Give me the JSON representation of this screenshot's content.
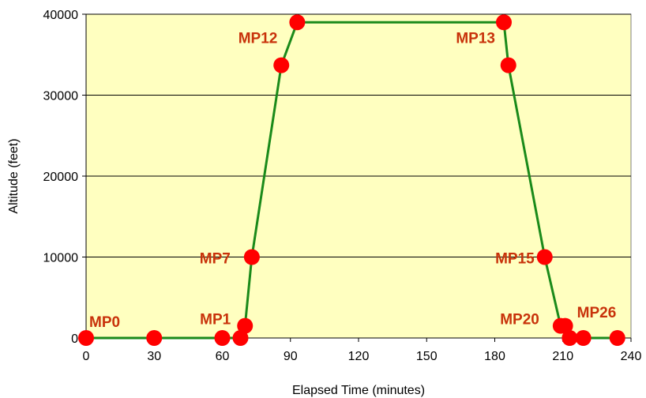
{
  "chart_data": {
    "type": "line",
    "title": "",
    "xlabel": "Elapsed Time (minutes)",
    "ylabel": "Altitude (feet)",
    "xlim": [
      0,
      240
    ],
    "ylim": [
      0,
      40000
    ],
    "x_ticks": [
      0,
      30,
      60,
      90,
      120,
      150,
      180,
      210,
      240
    ],
    "y_ticks": [
      0,
      10000,
      20000,
      30000,
      40000
    ],
    "grid": "horizontal",
    "legend": "none",
    "colors": {
      "plot_background": "#ffffc0",
      "line": "#1a8a1a",
      "marker": "#ff0000",
      "label": "#c8320a",
      "gridline": "#000000"
    },
    "series": [
      {
        "x": [
          0,
          30,
          60,
          68,
          70,
          73,
          86,
          93,
          184,
          186,
          202,
          209,
          211,
          213,
          219,
          234
        ],
        "y": [
          0,
          0,
          0,
          0,
          1500,
          10000,
          33700,
          39000,
          39000,
          33700,
          10000,
          1500,
          1500,
          0,
          0,
          0
        ]
      }
    ],
    "annotations": [
      {
        "text": "MP0",
        "x": 0,
        "y": 0
      },
      {
        "text": "MP1",
        "x": 70,
        "y": 1500
      },
      {
        "text": "MP7",
        "x": 73,
        "y": 10000
      },
      {
        "text": "MP12",
        "x": 93,
        "y": 39000
      },
      {
        "text": "MP13",
        "x": 184,
        "y": 39000
      },
      {
        "text": "MP15",
        "x": 202,
        "y": 10000
      },
      {
        "text": "MP20",
        "x": 209,
        "y": 1500
      },
      {
        "text": "MP26",
        "x": 219,
        "y": 0
      }
    ]
  }
}
